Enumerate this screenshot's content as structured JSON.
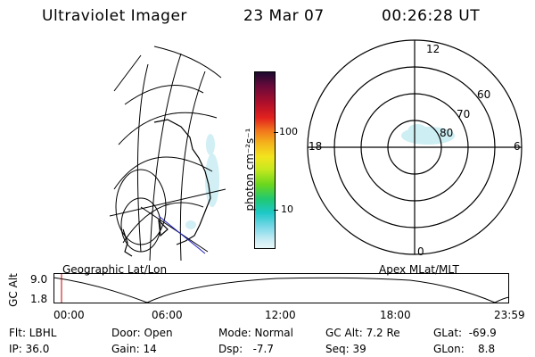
{
  "header": {
    "instrument": "Ultraviolet Imager",
    "date": "23 Mar 07",
    "time": "00:26:28 UT"
  },
  "colorbar": {
    "unit_label": "photon cm⁻²s⁻¹",
    "ticks": [
      "100",
      "10"
    ]
  },
  "polar": {
    "clock_labels": {
      "top": "12",
      "left": "18",
      "right": "6",
      "bottom": "0"
    },
    "lat_labels": [
      "60",
      "70",
      "80"
    ]
  },
  "map_titles": {
    "left": "Geographic Lat/Lon",
    "right": "Apex MLat/MLT"
  },
  "altitude_plot": {
    "ylabel": "GC Alt",
    "yticks": [
      "9.0",
      "1.8"
    ],
    "xticks": [
      "00:00",
      "06:00",
      "12:00",
      "18:00",
      "23:59"
    ]
  },
  "info": {
    "flt": "Flt: LBHL",
    "ip": "IP: 36.0",
    "door": "Door: Open",
    "gain": "Gain: 14",
    "mode": "Mode: Normal",
    "dsp": "Dsp:   -7.7",
    "gcalt": "GC Alt: 7.2 Re",
    "seq": "Seq: 39",
    "glat": "GLat:  -69.9",
    "glon": "GLon:    8.8"
  }
}
